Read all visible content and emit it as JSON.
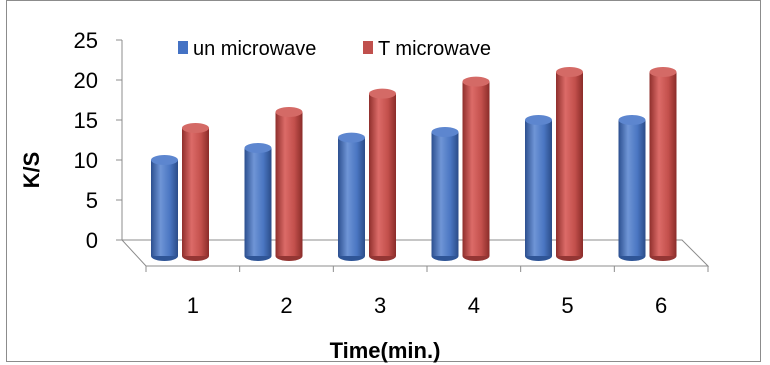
{
  "chart_data": {
    "type": "bar",
    "title": "",
    "xlabel": "Time(min.)",
    "ylabel": "K/S",
    "categories": [
      "1",
      "2",
      "3",
      "4",
      "5",
      "6"
    ],
    "ylim": [
      0,
      25
    ],
    "yticks": [
      "0",
      "5",
      "10",
      "15",
      "20",
      "25"
    ],
    "grid": false,
    "legend_position": "top",
    "series": [
      {
        "name": "un microwave",
        "color": "#4472c4",
        "values": [
          12,
          13.5,
          14.8,
          15.5,
          17,
          17
        ]
      },
      {
        "name": "T microwave",
        "color": "#c0504d",
        "values": [
          16,
          18,
          20.3,
          21.8,
          23,
          23
        ]
      }
    ]
  }
}
